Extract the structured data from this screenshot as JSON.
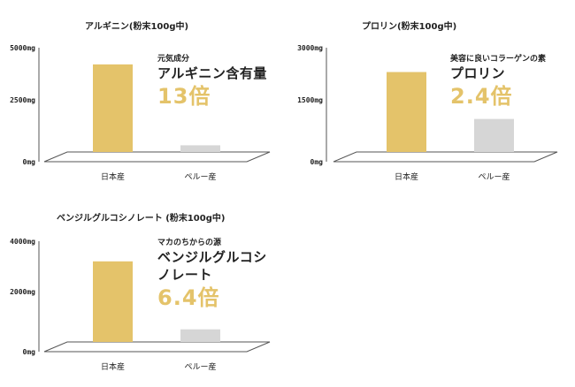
{
  "colors": {
    "japan": "#E4C36A",
    "peru": "#D6D6D6",
    "accent": "#E4C36A",
    "axis": "#555555"
  },
  "charts": [
    {
      "title": "アルギニン(粉末100g中)",
      "callout": {
        "sub": "元気成分",
        "main": [
          "アルギニン含有量"
        ],
        "ratio": "13倍"
      },
      "chart_data": {
        "type": "bar",
        "title": "アルギニン(粉末100g中)",
        "categories": [
          "日本産",
          "ペルー産"
        ],
        "values": [
          4200,
          320
        ],
        "yticks": [
          "0mg",
          "2500mg",
          "5000mg"
        ],
        "ylim": [
          0,
          5000
        ]
      }
    },
    {
      "title": "プロリン(粉末100g中)",
      "callout": {
        "sub": "美容に良いコラーゲンの素",
        "main": [
          "プロリン"
        ],
        "ratio": "2.4倍"
      },
      "chart_data": {
        "type": "bar",
        "title": "プロリン(粉末100g中)",
        "categories": [
          "日本産",
          "ペルー産"
        ],
        "values": [
          2300,
          950
        ],
        "yticks": [
          "0mg",
          "1500mg",
          "3000mg"
        ],
        "ylim": [
          0,
          3000
        ]
      }
    },
    {
      "title": "ベンジルグルコシノレート (粉末100g中)",
      "callout": {
        "sub": "マカのちからの源",
        "main": [
          "ベンジルグルコシ",
          "ノレート"
        ],
        "ratio": "6.4倍"
      },
      "chart_data": {
        "type": "bar",
        "title": "ベンジルグルコシノレート (粉末100g中)",
        "categories": [
          "日本産",
          "ペルー産"
        ],
        "values": [
          3200,
          500
        ],
        "yticks": [
          "0mg",
          "2000mg",
          "4000mg"
        ],
        "ylim": [
          0,
          4000
        ]
      }
    }
  ]
}
